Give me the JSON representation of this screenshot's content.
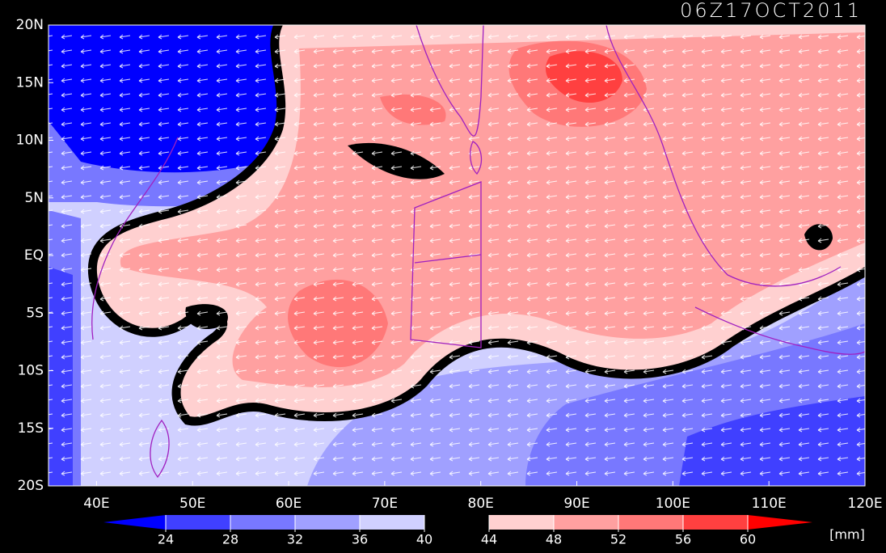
{
  "title": "06Z17OCT2011",
  "lat_ticks": [
    {
      "value": 20,
      "label": "20N"
    },
    {
      "value": 15,
      "label": "15N"
    },
    {
      "value": 10,
      "label": "10N"
    },
    {
      "value": 5,
      "label": "5N"
    },
    {
      "value": 0,
      "label": "EQ"
    },
    {
      "value": -5,
      "label": "5S"
    },
    {
      "value": -10,
      "label": "10S"
    },
    {
      "value": -15,
      "label": "15S"
    },
    {
      "value": -20,
      "label": "20S"
    }
  ],
  "lon_ticks": [
    {
      "value": 40,
      "label": "40E"
    },
    {
      "value": 50,
      "label": "50E"
    },
    {
      "value": 60,
      "label": "60E"
    },
    {
      "value": 70,
      "label": "70E"
    },
    {
      "value": 80,
      "label": "80E"
    },
    {
      "value": 90,
      "label": "90E"
    },
    {
      "value": 100,
      "label": "100E"
    },
    {
      "value": 110,
      "label": "110E"
    },
    {
      "value": 120,
      "label": "120E"
    }
  ],
  "lat_range": [
    -20,
    20
  ],
  "lon_range": [
    35,
    120
  ],
  "colorbar": {
    "levels": [
      24,
      28,
      32,
      36,
      40,
      44,
      48,
      52,
      56,
      60
    ],
    "colors": [
      "#0000ff",
      "#4040ff",
      "#7878ff",
      "#a0a0ff",
      "#d0d0ff",
      "#000000",
      "#ffd0d0",
      "#ffa0a0",
      "#ff7878",
      "#ff4040",
      "#ff0000"
    ],
    "unit": "[mm]"
  }
}
